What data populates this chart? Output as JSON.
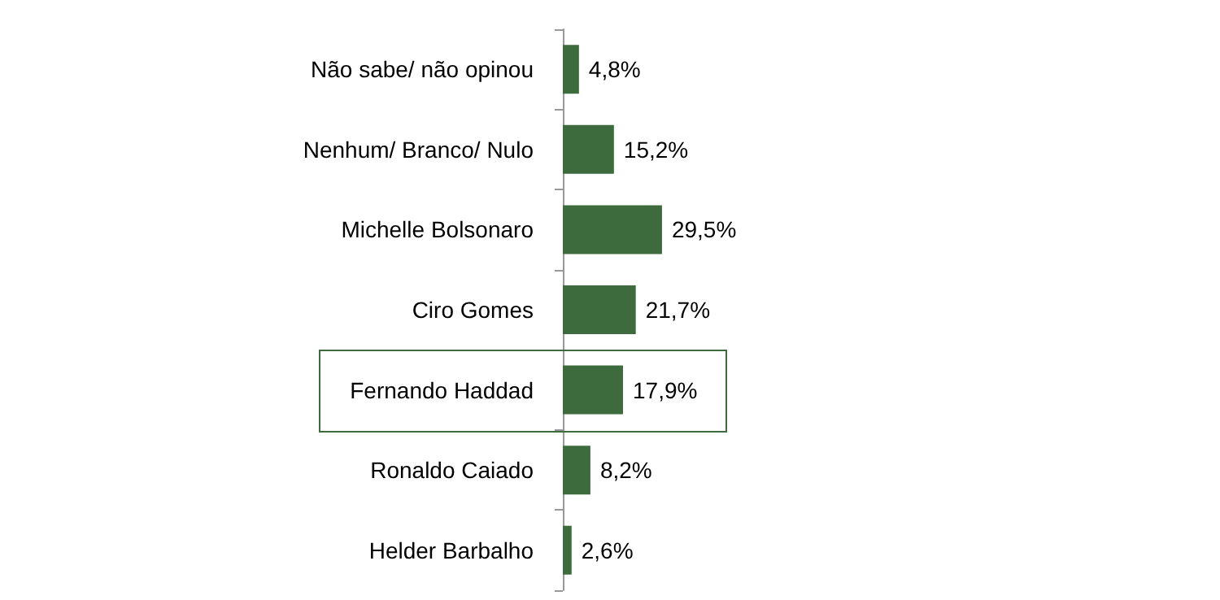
{
  "chart_data": {
    "type": "bar",
    "orientation": "horizontal",
    "categories": [
      "Não sabe/ não opinou",
      "Nenhum/ Branco/ Nulo",
      "Michelle Bolsonaro",
      "Ciro Gomes",
      "Fernando Haddad",
      "Ronaldo Caiado",
      "Helder Barbalho"
    ],
    "values": [
      4.8,
      15.2,
      29.5,
      21.7,
      17.9,
      8.2,
      2.6
    ],
    "value_labels": [
      "4,8%",
      "15,2%",
      "29,5%",
      "21,7%",
      "17,9%",
      "8,2%",
      "2,6%"
    ],
    "color": "#3d6b3d"
  }
}
